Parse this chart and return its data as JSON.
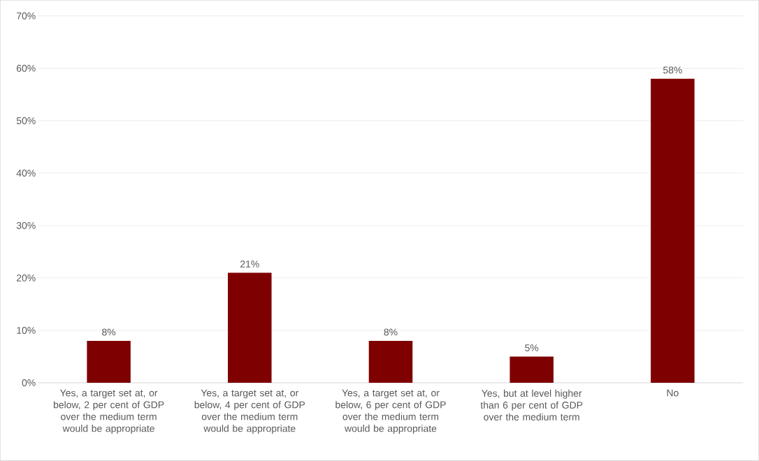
{
  "chart_data": {
    "type": "bar",
    "categories": [
      "Yes, a target set at, or below, 2 per cent of GDP over the medium term would be appropriate",
      "Yes, a target set at, or below, 4 per cent of GDP over the medium term would be appropriate",
      "Yes, a target set at, or below, 6 per cent of GDP over the medium term would be appropriate",
      "Yes, but at level higher than 6 per cent of GDP over the medium term",
      "No"
    ],
    "values": [
      8,
      21,
      8,
      5,
      58
    ],
    "value_labels": [
      "8%",
      "21%",
      "8%",
      "5%",
      "58%"
    ],
    "color": "#7f0000",
    "ylim": [
      0,
      70
    ],
    "yticks": [
      {
        "value": 0,
        "label": "0%"
      },
      {
        "value": 10,
        "label": "10%"
      },
      {
        "value": 20,
        "label": "20%"
      },
      {
        "value": 30,
        "label": "30%"
      },
      {
        "value": 40,
        "label": "40%"
      },
      {
        "value": 50,
        "label": "50%"
      },
      {
        "value": 60,
        "label": "60%"
      },
      {
        "value": 70,
        "label": "70%"
      }
    ],
    "grid": "y"
  }
}
